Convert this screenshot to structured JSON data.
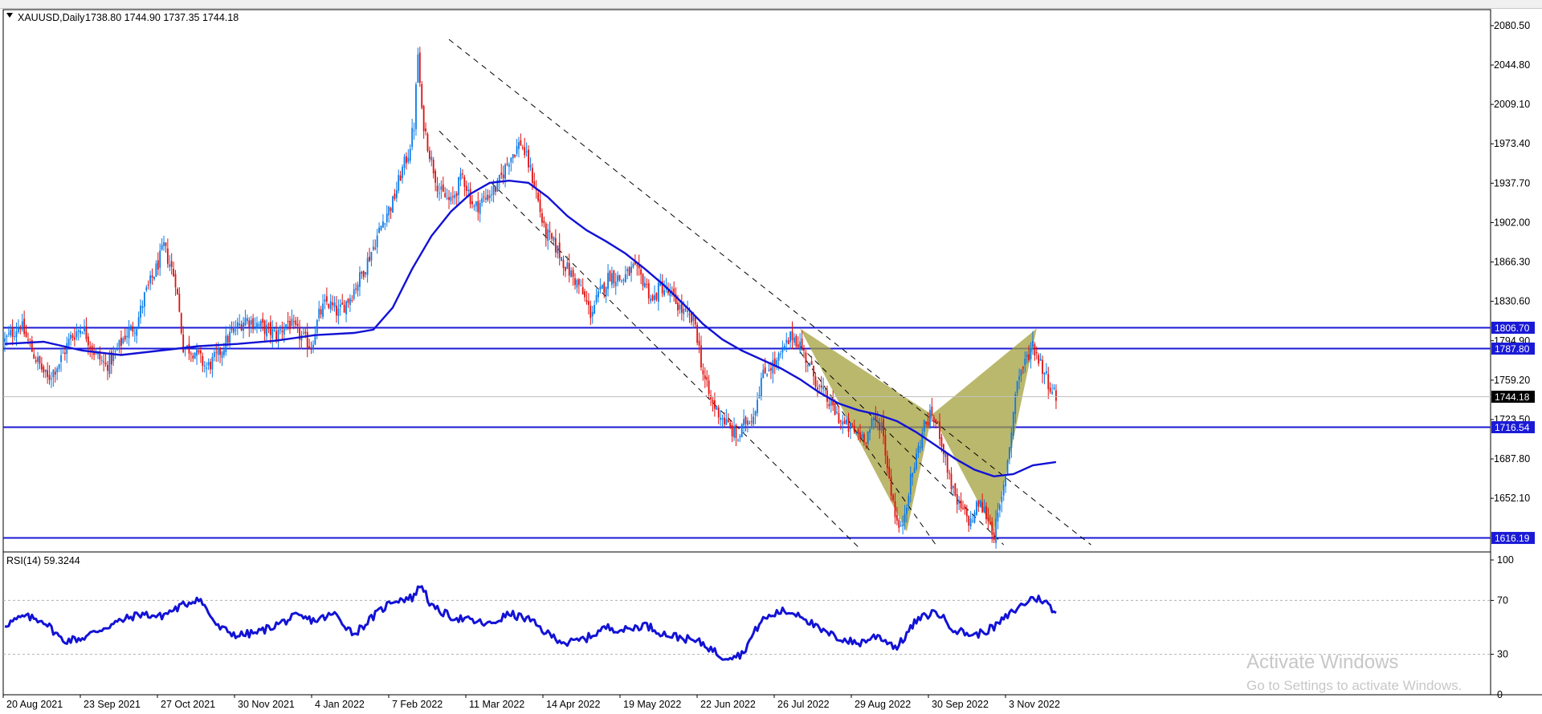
{
  "window": {
    "symbol_header": "XAUUSD,Daily",
    "ohlc": "1738.80 1744.90 1737.35 1744.18",
    "rsi_header": "RSI(14) 59.3244"
  },
  "watermark": {
    "line1": "Activate Windows",
    "line2": "Go to Settings to activate Windows."
  },
  "colors": {
    "bull": "#0b7ae8",
    "bear": "#e01010",
    "ma": "#1212d6",
    "hline": "#1a1ad6",
    "pattern": "#a3a03c",
    "rsi": "#1212d6"
  },
  "chart_data": {
    "type": "candlestick",
    "symbol": "XAUUSD",
    "timeframe": "Daily",
    "current_price": 1744.18,
    "price_axis": {
      "range": [
        1603.5,
        2095
      ],
      "ticks": [
        2080.5,
        2044.8,
        2009.1,
        1973.4,
        1937.7,
        1902.0,
        1866.3,
        1830.6,
        1794.9,
        1759.2,
        1723.5,
        1687.8,
        1652.1,
        1616.19
      ],
      "tick_labels": [
        "2080.50",
        "2044.80",
        "2009.10",
        "1973.40",
        "1937.70",
        "1902.00",
        "1866.30",
        "1830.60",
        "1794.90",
        "1759.20",
        "1723.50",
        "1687.80",
        "1652.10"
      ]
    },
    "horizontal_levels": [
      {
        "price": 1806.7,
        "label": "1806.70"
      },
      {
        "price": 1787.8,
        "label": "1787.80"
      },
      {
        "price": 1716.54,
        "label": "1716.54"
      },
      {
        "price": 1616.19,
        "label": "1616.19"
      }
    ],
    "current_price_label": "1744.18",
    "x_axis_labels": [
      "20 Aug 2021",
      "23 Sep 2021",
      "27 Oct 2021",
      "30 Nov 2021",
      "4 Jan 2022",
      "7 Feb 2022",
      "11 Mar 2022",
      "14 Apr 2022",
      "19 May 2022",
      "22 Jun 2022",
      "26 Jul 2022",
      "29 Aug 2022",
      "30 Sep 2022",
      "3 Nov 2022"
    ],
    "close_path": [
      [
        0,
        1795
      ],
      [
        8,
        1810
      ],
      [
        15,
        1782
      ],
      [
        22,
        1760
      ],
      [
        28,
        1775
      ],
      [
        34,
        1798
      ],
      [
        40,
        1808
      ],
      [
        46,
        1785
      ],
      [
        52,
        1772
      ],
      [
        56,
        1780
      ],
      [
        62,
        1800
      ],
      [
        68,
        1810
      ],
      [
        72,
        1835
      ],
      [
        78,
        1860
      ],
      [
        82,
        1880
      ],
      [
        88,
        1850
      ],
      [
        92,
        1790
      ],
      [
        98,
        1785
      ],
      [
        104,
        1770
      ],
      [
        110,
        1782
      ],
      [
        116,
        1800
      ],
      [
        124,
        1815
      ],
      [
        132,
        1808
      ],
      [
        140,
        1800
      ],
      [
        146,
        1812
      ],
      [
        152,
        1800
      ],
      [
        158,
        1790
      ],
      [
        162,
        1818
      ],
      [
        166,
        1830
      ],
      [
        172,
        1820
      ],
      [
        178,
        1835
      ],
      [
        184,
        1855
      ],
      [
        190,
        1880
      ],
      [
        196,
        1908
      ],
      [
        200,
        1920
      ],
      [
        204,
        1945
      ],
      [
        208,
        1965
      ],
      [
        211,
        1990
      ],
      [
        213,
        2055
      ],
      [
        215,
        2000
      ],
      [
        219,
        1965
      ],
      [
        224,
        1930
      ],
      [
        230,
        1920
      ],
      [
        236,
        1945
      ],
      [
        242,
        1915
      ],
      [
        248,
        1925
      ],
      [
        254,
        1935
      ],
      [
        260,
        1960
      ],
      [
        266,
        1975
      ],
      [
        270,
        1955
      ],
      [
        274,
        1930
      ],
      [
        278,
        1895
      ],
      [
        284,
        1880
      ],
      [
        290,
        1860
      ],
      [
        296,
        1845
      ],
      [
        302,
        1820
      ],
      [
        306,
        1835
      ],
      [
        312,
        1855
      ],
      [
        318,
        1850
      ],
      [
        324,
        1860
      ],
      [
        330,
        1848
      ],
      [
        334,
        1830
      ],
      [
        338,
        1845
      ],
      [
        344,
        1835
      ],
      [
        350,
        1820
      ],
      [
        356,
        1810
      ],
      [
        360,
        1765
      ],
      [
        364,
        1740
      ],
      [
        368,
        1730
      ],
      [
        374,
        1715
      ],
      [
        378,
        1706
      ],
      [
        382,
        1722
      ],
      [
        386,
        1728
      ],
      [
        390,
        1760
      ],
      [
        394,
        1772
      ],
      [
        398,
        1775
      ],
      [
        402,
        1788
      ],
      [
        406,
        1800
      ],
      [
        410,
        1792
      ],
      [
        414,
        1775
      ],
      [
        420,
        1752
      ],
      [
        426,
        1736
      ],
      [
        432,
        1720
      ],
      [
        438,
        1712
      ],
      [
        444,
        1708
      ],
      [
        448,
        1722
      ],
      [
        452,
        1720
      ],
      [
        456,
        1670
      ],
      [
        460,
        1630
      ],
      [
        462,
        1622
      ],
      [
        466,
        1660
      ],
      [
        470,
        1690
      ],
      [
        474,
        1718
      ],
      [
        478,
        1728
      ],
      [
        482,
        1712
      ],
      [
        486,
        1680
      ],
      [
        490,
        1650
      ],
      [
        494,
        1640
      ],
      [
        498,
        1630
      ],
      [
        502,
        1648
      ],
      [
        506,
        1638
      ],
      [
        510,
        1620
      ],
      [
        514,
        1650
      ],
      [
        518,
        1700
      ],
      [
        522,
        1760
      ],
      [
        526,
        1775
      ],
      [
        530,
        1792
      ],
      [
        534,
        1775
      ],
      [
        538,
        1758
      ],
      [
        542,
        1744
      ]
    ],
    "ma_path": [
      [
        0,
        1792
      ],
      [
        20,
        1794
      ],
      [
        40,
        1786
      ],
      [
        60,
        1782
      ],
      [
        80,
        1786
      ],
      [
        100,
        1790
      ],
      [
        120,
        1792
      ],
      [
        140,
        1795
      ],
      [
        160,
        1800
      ],
      [
        180,
        1802
      ],
      [
        190,
        1805
      ],
      [
        200,
        1825
      ],
      [
        210,
        1860
      ],
      [
        220,
        1890
      ],
      [
        230,
        1912
      ],
      [
        240,
        1928
      ],
      [
        250,
        1938
      ],
      [
        260,
        1940
      ],
      [
        270,
        1938
      ],
      [
        280,
        1925
      ],
      [
        290,
        1908
      ],
      [
        300,
        1895
      ],
      [
        310,
        1885
      ],
      [
        320,
        1874
      ],
      [
        330,
        1860
      ],
      [
        340,
        1845
      ],
      [
        350,
        1828
      ],
      [
        360,
        1810
      ],
      [
        370,
        1796
      ],
      [
        380,
        1786
      ],
      [
        390,
        1778
      ],
      [
        400,
        1770
      ],
      [
        410,
        1760
      ],
      [
        420,
        1748
      ],
      [
        430,
        1738
      ],
      [
        440,
        1732
      ],
      [
        450,
        1728
      ],
      [
        460,
        1722
      ],
      [
        470,
        1712
      ],
      [
        480,
        1700
      ],
      [
        490,
        1688
      ],
      [
        500,
        1678
      ],
      [
        510,
        1672
      ],
      [
        520,
        1674
      ],
      [
        530,
        1682
      ],
      [
        542,
        1685
      ]
    ],
    "channel_lines": [
      {
        "from": [
          229,
          2068
        ],
        "to": [
          560,
          1610
        ]
      },
      {
        "from": [
          224,
          1985
        ],
        "to": [
          440,
          1608
        ]
      },
      {
        "from": [
          410,
          1785
        ],
        "to": [
          480,
          1610
        ]
      },
      {
        "from": [
          410,
          1790
        ],
        "to": [
          515,
          1610
        ]
      }
    ],
    "harmonic_pattern": {
      "type": "bat",
      "points": [
        [
          410,
          1806
        ],
        [
          465,
          1622
        ],
        [
          478,
          1728
        ],
        [
          510,
          1622
        ],
        [
          532,
          1806
        ]
      ]
    },
    "rsi": {
      "period": 14,
      "value": 59.3244,
      "axis_ticks": [
        100,
        70,
        30,
        0
      ],
      "range": [
        0,
        100
      ],
      "path": [
        [
          0,
          52
        ],
        [
          10,
          58
        ],
        [
          20,
          55
        ],
        [
          30,
          40
        ],
        [
          40,
          42
        ],
        [
          50,
          49
        ],
        [
          60,
          55
        ],
        [
          70,
          60
        ],
        [
          80,
          58
        ],
        [
          90,
          65
        ],
        [
          100,
          72
        ],
        [
          110,
          50
        ],
        [
          120,
          44
        ],
        [
          130,
          46
        ],
        [
          140,
          52
        ],
        [
          150,
          58
        ],
        [
          160,
          55
        ],
        [
          170,
          60
        ],
        [
          180,
          45
        ],
        [
          190,
          58
        ],
        [
          200,
          70
        ],
        [
          210,
          72
        ],
        [
          215,
          82
        ],
        [
          220,
          65
        ],
        [
          230,
          58
        ],
        [
          240,
          55
        ],
        [
          250,
          52
        ],
        [
          260,
          60
        ],
        [
          270,
          56
        ],
        [
          280,
          45
        ],
        [
          290,
          38
        ],
        [
          300,
          42
        ],
        [
          310,
          50
        ],
        [
          320,
          48
        ],
        [
          330,
          52
        ],
        [
          340,
          45
        ],
        [
          350,
          42
        ],
        [
          360,
          38
        ],
        [
          370,
          28
        ],
        [
          380,
          30
        ],
        [
          390,
          55
        ],
        [
          400,
          62
        ],
        [
          410,
          60
        ],
        [
          420,
          48
        ],
        [
          430,
          42
        ],
        [
          440,
          38
        ],
        [
          450,
          44
        ],
        [
          460,
          35
        ],
        [
          470,
          55
        ],
        [
          480,
          62
        ],
        [
          490,
          48
        ],
        [
          500,
          44
        ],
        [
          510,
          50
        ],
        [
          520,
          62
        ],
        [
          530,
          72
        ],
        [
          536,
          70
        ],
        [
          542,
          59.3
        ]
      ]
    }
  }
}
